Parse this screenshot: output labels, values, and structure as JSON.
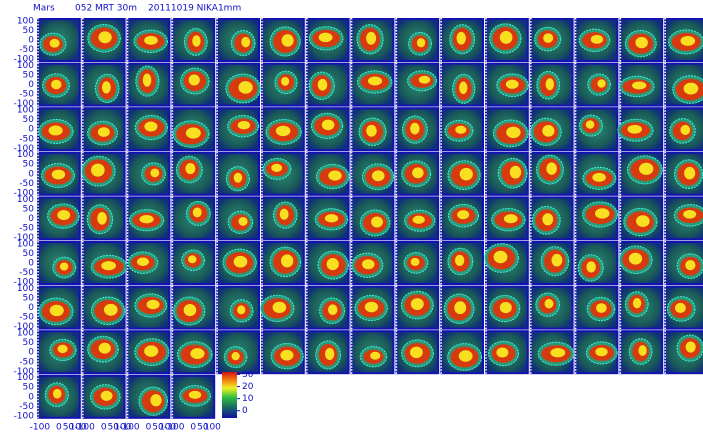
{
  "chart_data": {
    "type": "heatmap-grid",
    "title": [
      "Mars",
      "052 MRT 30m",
      "20111019 NIKA1mm"
    ],
    "ylim": [
      -115,
      115
    ],
    "yticks": [
      100,
      50,
      0,
      -50,
      -100
    ],
    "xlim": [
      -115,
      115
    ],
    "xticks": [
      -100,
      0,
      50,
      100
    ],
    "colorbar": {
      "lim": [
        -6,
        32
      ],
      "ticks": [
        0,
        10,
        20,
        30
      ]
    }
  }
}
